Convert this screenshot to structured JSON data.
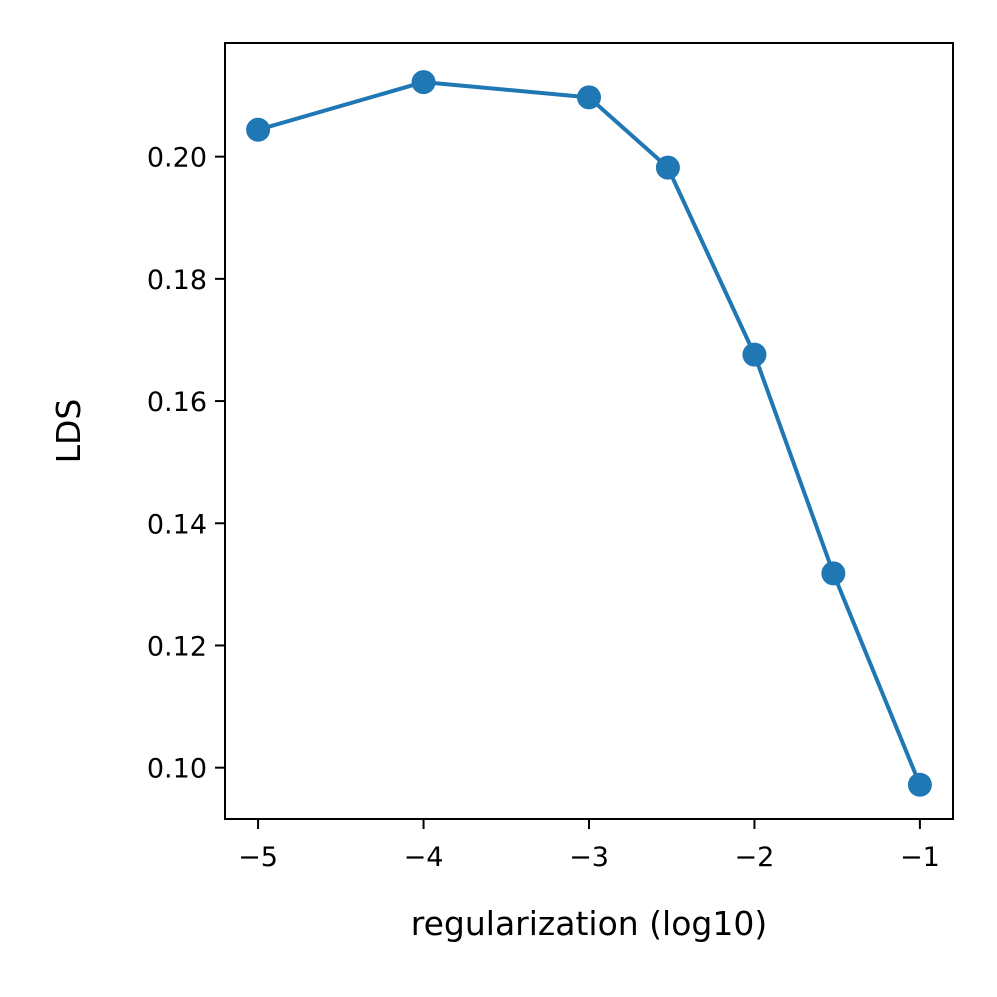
{
  "chart_data": {
    "type": "line",
    "title": "",
    "xlabel": "regularization (log10)",
    "ylabel": "LDS",
    "x": [
      -5,
      -4,
      -3,
      -2.523,
      -2,
      -1.523,
      -1
    ],
    "series": [
      {
        "values": [
          0.2044,
          0.2122,
          0.2097,
          0.1982,
          0.1676,
          0.1318,
          0.0972
        ]
      }
    ],
    "xlim": [
      -5.2,
      -0.8
    ],
    "ylim": [
      0.0916,
      0.2186
    ],
    "xticks": [
      -5,
      -4,
      -3,
      -2,
      -1
    ],
    "xtick_labels": [
      "−5",
      "−4",
      "−3",
      "−2",
      "−1"
    ],
    "yticks": [
      0.1,
      0.12,
      0.14,
      0.16,
      0.18,
      0.2
    ],
    "ytick_labels": [
      "0.10",
      "0.12",
      "0.14",
      "0.16",
      "0.18",
      "0.20"
    ],
    "grid": false,
    "legend": "none",
    "color": "#1f77b4"
  }
}
